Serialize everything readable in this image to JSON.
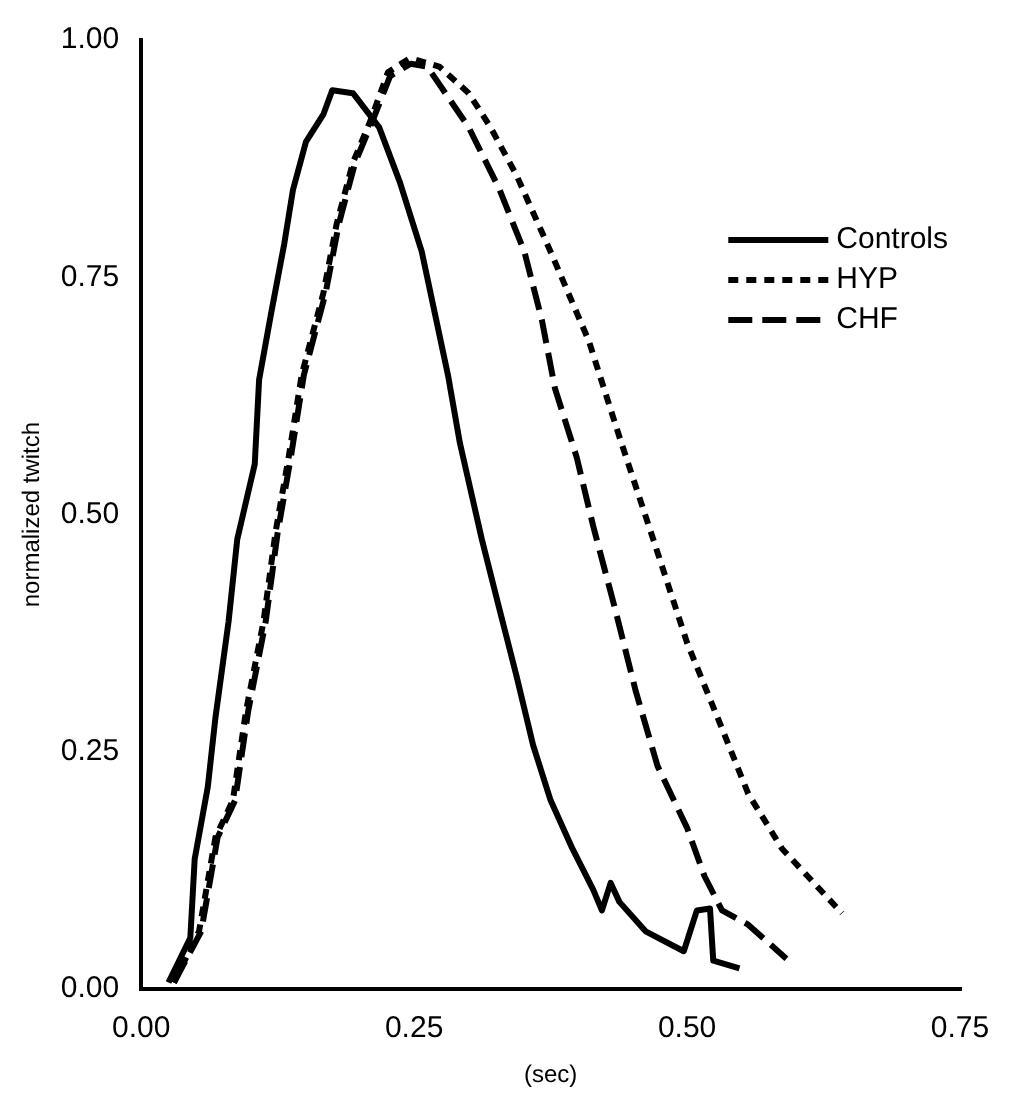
{
  "chart_data": {
    "type": "line",
    "xlabel": "(sec)",
    "ylabel": "normalized twitch",
    "xlim": [
      0,
      0.75
    ],
    "ylim": [
      0,
      1
    ],
    "xticks": [
      {
        "value": 0,
        "label": "0.00"
      },
      {
        "value": 0.25,
        "label": "0.25"
      },
      {
        "value": 0.5,
        "label": "0.50"
      },
      {
        "value": 0.75,
        "label": "0.75"
      }
    ],
    "yticks": [
      {
        "value": 0,
        "label": "0.00"
      },
      {
        "value": 0.25,
        "label": "0.25"
      },
      {
        "value": 0.5,
        "label": "0.50"
      },
      {
        "value": 0.75,
        "label": "0.75"
      },
      {
        "value": 1,
        "label": "1.00"
      }
    ],
    "grid": false,
    "legend": "top right",
    "marker": "none",
    "series": [
      {
        "name": "Controls",
        "color": "#000000",
        "line_style": "solid",
        "x": [
          0.025,
          0.045,
          0.049,
          0.061,
          0.068,
          0.08,
          0.088,
          0.104,
          0.108,
          0.119,
          0.131,
          0.139,
          0.151,
          0.167,
          0.175,
          0.194,
          0.218,
          0.237,
          0.257,
          0.281,
          0.292,
          0.312,
          0.328,
          0.344,
          0.359,
          0.375,
          0.395,
          0.414,
          0.422,
          0.43,
          0.438,
          0.462,
          0.497,
          0.509,
          0.521,
          0.524,
          0.548
        ],
        "values": [
          0.007,
          0.054,
          0.137,
          0.213,
          0.286,
          0.387,
          0.474,
          0.553,
          0.642,
          0.712,
          0.785,
          0.842,
          0.893,
          0.922,
          0.947,
          0.944,
          0.908,
          0.85,
          0.777,
          0.647,
          0.575,
          0.474,
          0.401,
          0.329,
          0.257,
          0.199,
          0.148,
          0.105,
          0.083,
          0.112,
          0.092,
          0.061,
          0.04,
          0.083,
          0.085,
          0.03,
          0.022
        ]
      },
      {
        "name": "HYP",
        "color": "#000000",
        "line_style": "dotted",
        "x": [
          0.03,
          0.053,
          0.068,
          0.084,
          0.096,
          0.112,
          0.123,
          0.135,
          0.147,
          0.167,
          0.179,
          0.194,
          0.21,
          0.226,
          0.245,
          0.249,
          0.273,
          0.3,
          0.32,
          0.344,
          0.375,
          0.41,
          0.438,
          0.469,
          0.5,
          0.528,
          0.556,
          0.587,
          0.642
        ],
        "values": [
          0.007,
          0.061,
          0.16,
          0.199,
          0.293,
          0.387,
          0.481,
          0.56,
          0.647,
          0.734,
          0.806,
          0.871,
          0.915,
          0.966,
          0.98,
          0.98,
          0.972,
          0.944,
          0.908,
          0.857,
          0.777,
          0.683,
          0.582,
          0.474,
          0.365,
          0.286,
          0.206,
          0.148,
          0.08
        ]
      },
      {
        "name": "CHF",
        "color": "#000000",
        "line_style": "dashed",
        "x": [
          0.03,
          0.055,
          0.07,
          0.086,
          0.098,
          0.114,
          0.125,
          0.137,
          0.149,
          0.169,
          0.181,
          0.196,
          0.212,
          0.228,
          0.247,
          0.262,
          0.3,
          0.328,
          0.351,
          0.367,
          0.379,
          0.399,
          0.414,
          0.434,
          0.453,
          0.473,
          0.5,
          0.516,
          0.532,
          0.556,
          0.591
        ],
        "values": [
          0.007,
          0.061,
          0.16,
          0.199,
          0.293,
          0.387,
          0.481,
          0.56,
          0.647,
          0.734,
          0.806,
          0.871,
          0.915,
          0.962,
          0.975,
          0.972,
          0.908,
          0.843,
          0.777,
          0.705,
          0.633,
          0.56,
          0.488,
          0.401,
          0.314,
          0.235,
          0.17,
          0.119,
          0.083,
          0.068,
          0.032
        ]
      }
    ]
  }
}
